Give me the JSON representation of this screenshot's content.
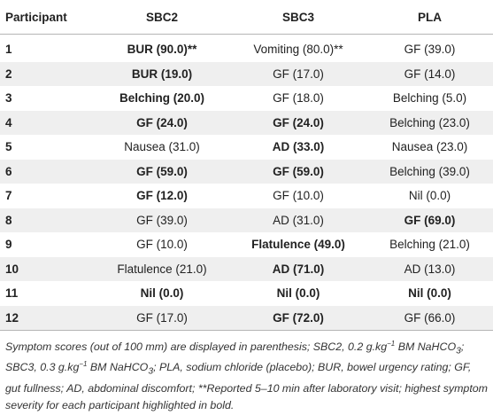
{
  "table": {
    "headers": [
      "Participant",
      "SBC2",
      "SBC3",
      "PLA"
    ],
    "rows": [
      {
        "participant": "1",
        "cells": [
          {
            "text": "BUR (90.0)**",
            "bold": true
          },
          {
            "text": "Vomiting (80.0)**",
            "bold": false
          },
          {
            "text": "GF (39.0)",
            "bold": false
          }
        ]
      },
      {
        "participant": "2",
        "cells": [
          {
            "text": "BUR (19.0)",
            "bold": true
          },
          {
            "text": "GF (17.0)",
            "bold": false
          },
          {
            "text": "GF (14.0)",
            "bold": false
          }
        ]
      },
      {
        "participant": "3",
        "cells": [
          {
            "text": "Belching (20.0)",
            "bold": true
          },
          {
            "text": "GF (18.0)",
            "bold": false
          },
          {
            "text": "Belching (5.0)",
            "bold": false
          }
        ]
      },
      {
        "participant": "4",
        "cells": [
          {
            "text": "GF (24.0)",
            "bold": true
          },
          {
            "text": "GF (24.0)",
            "bold": true
          },
          {
            "text": "Belching (23.0)",
            "bold": false
          }
        ]
      },
      {
        "participant": "5",
        "cells": [
          {
            "text": "Nausea (31.0)",
            "bold": false
          },
          {
            "text": "AD (33.0)",
            "bold": true
          },
          {
            "text": "Nausea (23.0)",
            "bold": false
          }
        ]
      },
      {
        "participant": "6",
        "cells": [
          {
            "text": "GF (59.0)",
            "bold": true
          },
          {
            "text": "GF (59.0)",
            "bold": true
          },
          {
            "text": "Belching (39.0)",
            "bold": false
          }
        ]
      },
      {
        "participant": "7",
        "cells": [
          {
            "text": "GF (12.0)",
            "bold": true
          },
          {
            "text": "GF (10.0)",
            "bold": false
          },
          {
            "text": "Nil (0.0)",
            "bold": false
          }
        ]
      },
      {
        "participant": "8",
        "cells": [
          {
            "text": "GF (39.0)",
            "bold": false
          },
          {
            "text": "AD (31.0)",
            "bold": false
          },
          {
            "text": "GF (69.0)",
            "bold": true
          }
        ]
      },
      {
        "participant": "9",
        "cells": [
          {
            "text": "GF (10.0)",
            "bold": false
          },
          {
            "text": "Flatulence (49.0)",
            "bold": true
          },
          {
            "text": "Belching (21.0)",
            "bold": false
          }
        ]
      },
      {
        "participant": "10",
        "cells": [
          {
            "text": "Flatulence (21.0)",
            "bold": false
          },
          {
            "text": "AD (71.0)",
            "bold": true
          },
          {
            "text": "AD (13.0)",
            "bold": false
          }
        ]
      },
      {
        "participant": "11",
        "cells": [
          {
            "text": "Nil (0.0)",
            "bold": true
          },
          {
            "text": "Nil (0.0)",
            "bold": true
          },
          {
            "text": "Nil (0.0)",
            "bold": true
          }
        ]
      },
      {
        "participant": "12",
        "cells": [
          {
            "text": "GF (17.0)",
            "bold": false
          },
          {
            "text": "GF (72.0)",
            "bold": true
          },
          {
            "text": "GF (66.0)",
            "bold": false
          }
        ]
      }
    ]
  },
  "footnote": {
    "t1": "Symptom scores (out of 100 mm) are displayed in parenthesis; SBC2, 0.2 g.kg",
    "sup1": "−1",
    "t2": " BM NaHCO",
    "sub1": "3",
    "t3": "; SBC3, 0.3 g.kg",
    "sup2": "−1",
    "t4": " BM NaHCO",
    "sub2": "3",
    "t5": "; PLA, sodium chloride (placebo); BUR, bowel urgency rating; GF, gut fullness; AD, abdominal discomfort; **Reported 5–10 min after laboratory visit; highest symptom severity for each participant highlighted in bold."
  }
}
